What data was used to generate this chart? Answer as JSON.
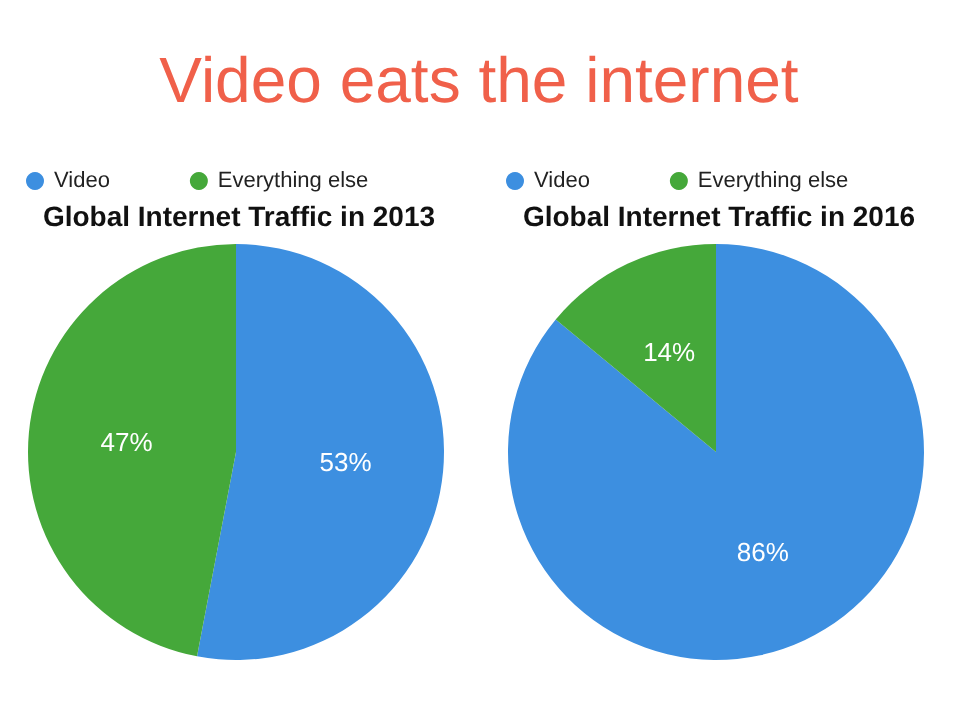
{
  "chart_data": [
    {
      "type": "pie",
      "title": "Global Internet Traffic in 2013",
      "annotations": [
        "Video eats the internet"
      ],
      "categories": [
        "Video",
        "Everything else"
      ],
      "values": [
        53,
        47
      ],
      "value_labels": [
        "53%",
        "47%"
      ],
      "colors": [
        "#3d8fe0",
        "#45a83a"
      ],
      "legend": "top left"
    },
    {
      "type": "pie",
      "title": "Global Internet Traffic in 2016",
      "categories": [
        "Video",
        "Everything else"
      ],
      "values": [
        86,
        14
      ],
      "value_labels": [
        "86%",
        "14%"
      ],
      "colors": [
        "#3d8fe0",
        "#45a83a"
      ],
      "legend": "top left"
    }
  ]
}
